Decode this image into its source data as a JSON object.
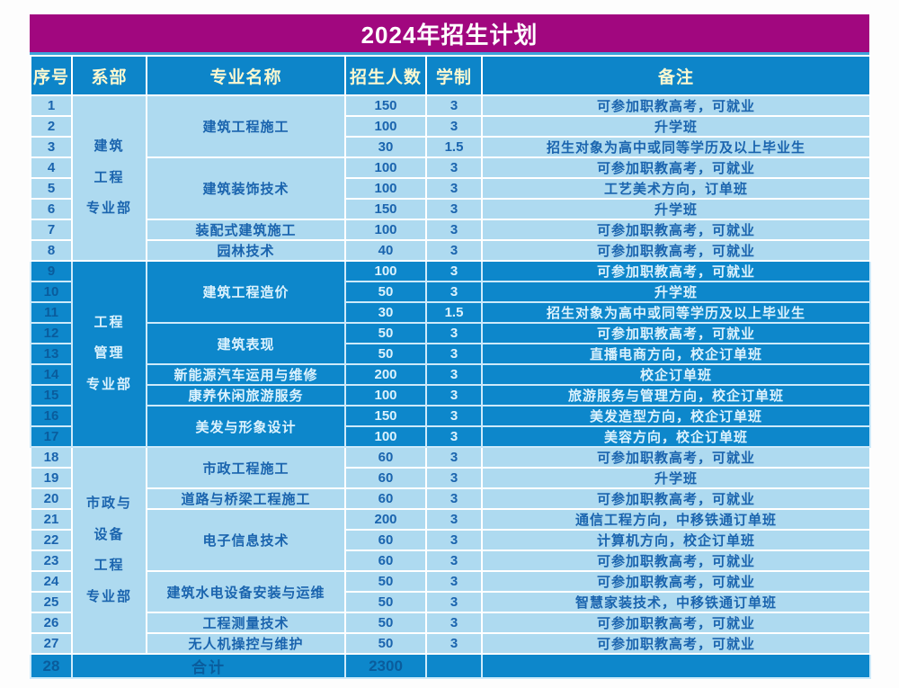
{
  "title": "2024年招生计划",
  "colors": {
    "title_bg": "#A1077F",
    "header_bg": "#0D85C9",
    "header_text": "#FBF8D0",
    "light_row_bg": "#AEDAF0",
    "light_row_text": "#1A64AE",
    "dark_row_bg": "#0D87CB",
    "dark_row_text": "#DCF2FD",
    "dark_row_number_text": "#0A5C9C",
    "gridline": "#FFFFFF"
  },
  "table": {
    "headers": [
      "序号",
      "系部",
      "专业名称",
      "招生人数",
      "学制",
      "备注"
    ],
    "departments": [
      {
        "name": "建筑工程专业部",
        "lines": [
          "建筑",
          "工程",
          "专业部"
        ]
      },
      {
        "name": "工程管理专业部",
        "lines": [
          "工程",
          "管理",
          "专业部"
        ]
      },
      {
        "name": "市政与设备工程专业部",
        "lines": [
          "市政与",
          "设备",
          "工程",
          "专业部"
        ]
      }
    ],
    "rows": [
      {
        "no": "1",
        "dept": "建筑工程专业部",
        "major": "建筑工程施工",
        "count": "150",
        "duration": "3",
        "remark": "可参加职教高考，可就业",
        "band": "light"
      },
      {
        "no": "2",
        "dept": "建筑工程专业部",
        "major": "建筑工程施工",
        "count": "100",
        "duration": "3",
        "remark": "升学班",
        "band": "light"
      },
      {
        "no": "3",
        "dept": "建筑工程专业部",
        "major": "建筑工程施工",
        "count": "30",
        "duration": "1.5",
        "remark": "招生对象为高中或同等学历及以上毕业生",
        "band": "light"
      },
      {
        "no": "4",
        "dept": "建筑工程专业部",
        "major": "建筑装饰技术",
        "count": "100",
        "duration": "3",
        "remark": "可参加职教高考，可就业",
        "band": "light"
      },
      {
        "no": "5",
        "dept": "建筑工程专业部",
        "major": "建筑装饰技术",
        "count": "100",
        "duration": "3",
        "remark": "工艺美术方向，订单班",
        "band": "light"
      },
      {
        "no": "6",
        "dept": "建筑工程专业部",
        "major": "建筑装饰技术",
        "count": "150",
        "duration": "3",
        "remark": "升学班",
        "band": "light"
      },
      {
        "no": "7",
        "dept": "建筑工程专业部",
        "major": "装配式建筑施工",
        "count": "100",
        "duration": "3",
        "remark": "可参加职教高考，可就业",
        "band": "light"
      },
      {
        "no": "8",
        "dept": "建筑工程专业部",
        "major": "园林技术",
        "count": "40",
        "duration": "3",
        "remark": "可参加职教高考，可就业",
        "band": "light"
      },
      {
        "no": "9",
        "dept": "工程管理专业部",
        "major": "建筑工程造价",
        "count": "100",
        "duration": "3",
        "remark": "可参加职教高考，可就业",
        "band": "dark"
      },
      {
        "no": "10",
        "dept": "工程管理专业部",
        "major": "建筑工程造价",
        "count": "50",
        "duration": "3",
        "remark": "升学班",
        "band": "dark"
      },
      {
        "no": "11",
        "dept": "工程管理专业部",
        "major": "建筑工程造价",
        "count": "30",
        "duration": "1.5",
        "remark": "招生对象为高中或同等学历及以上毕业生",
        "band": "dark"
      },
      {
        "no": "12",
        "dept": "工程管理专业部",
        "major": "建筑表现",
        "count": "50",
        "duration": "3",
        "remark": "可参加职教高考，可就业",
        "band": "dark"
      },
      {
        "no": "13",
        "dept": "工程管理专业部",
        "major": "建筑表现",
        "count": "50",
        "duration": "3",
        "remark": "直播电商方向，校企订单班",
        "band": "dark"
      },
      {
        "no": "14",
        "dept": "工程管理专业部",
        "major": "新能源汽车运用与维修",
        "count": "200",
        "duration": "3",
        "remark": "校企订单班",
        "band": "dark"
      },
      {
        "no": "15",
        "dept": "工程管理专业部",
        "major": "康养休闲旅游服务",
        "count": "100",
        "duration": "3",
        "remark": "旅游服务与管理方向，校企订单班",
        "band": "dark"
      },
      {
        "no": "16",
        "dept": "工程管理专业部",
        "major": "美发与形象设计",
        "count": "150",
        "duration": "3",
        "remark": "美发造型方向，校企订单班",
        "band": "dark"
      },
      {
        "no": "17",
        "dept": "工程管理专业部",
        "major": "美发与形象设计",
        "count": "100",
        "duration": "3",
        "remark": "美容方向，校企订单班",
        "band": "dark"
      },
      {
        "no": "18",
        "dept": "市政与设备工程专业部",
        "major": "市政工程施工",
        "count": "60",
        "duration": "3",
        "remark": "可参加职教高考，可就业",
        "band": "light"
      },
      {
        "no": "19",
        "dept": "市政与设备工程专业部",
        "major": "市政工程施工",
        "count": "60",
        "duration": "3",
        "remark": "升学班",
        "band": "light"
      },
      {
        "no": "20",
        "dept": "市政与设备工程专业部",
        "major": "道路与桥梁工程施工",
        "count": "60",
        "duration": "3",
        "remark": "可参加职教高考，可就业",
        "band": "light"
      },
      {
        "no": "21",
        "dept": "市政与设备工程专业部",
        "major": "电子信息技术",
        "count": "200",
        "duration": "3",
        "remark": "通信工程方向，中移铁通订单班",
        "band": "light"
      },
      {
        "no": "22",
        "dept": "市政与设备工程专业部",
        "major": "电子信息技术",
        "count": "60",
        "duration": "3",
        "remark": "计算机方向，校企订单班",
        "band": "light"
      },
      {
        "no": "23",
        "dept": "市政与设备工程专业部",
        "major": "电子信息技术",
        "count": "60",
        "duration": "3",
        "remark": "可参加职教高考，可就业",
        "band": "light"
      },
      {
        "no": "24",
        "dept": "市政与设备工程专业部",
        "major": "建筑水电设备安装与运维",
        "count": "50",
        "duration": "3",
        "remark": "可参加职教高考，可就业",
        "band": "light"
      },
      {
        "no": "25",
        "dept": "市政与设备工程专业部",
        "major": "建筑水电设备安装与运维",
        "count": "50",
        "duration": "3",
        "remark": "智慧家装技术，中移铁通订单班",
        "band": "light"
      },
      {
        "no": "26",
        "dept": "市政与设备工程专业部",
        "major": "工程测量技术",
        "count": "50",
        "duration": "3",
        "remark": "可参加职教高考，可就业",
        "band": "light"
      },
      {
        "no": "27",
        "dept": "市政与设备工程专业部",
        "major": "无人机操控与维护",
        "count": "50",
        "duration": "3",
        "remark": "可参加职教高考，可就业",
        "band": "light"
      }
    ],
    "total_row": {
      "no": "28",
      "label": "合计",
      "count": "2300",
      "duration": "",
      "remark": ""
    }
  }
}
